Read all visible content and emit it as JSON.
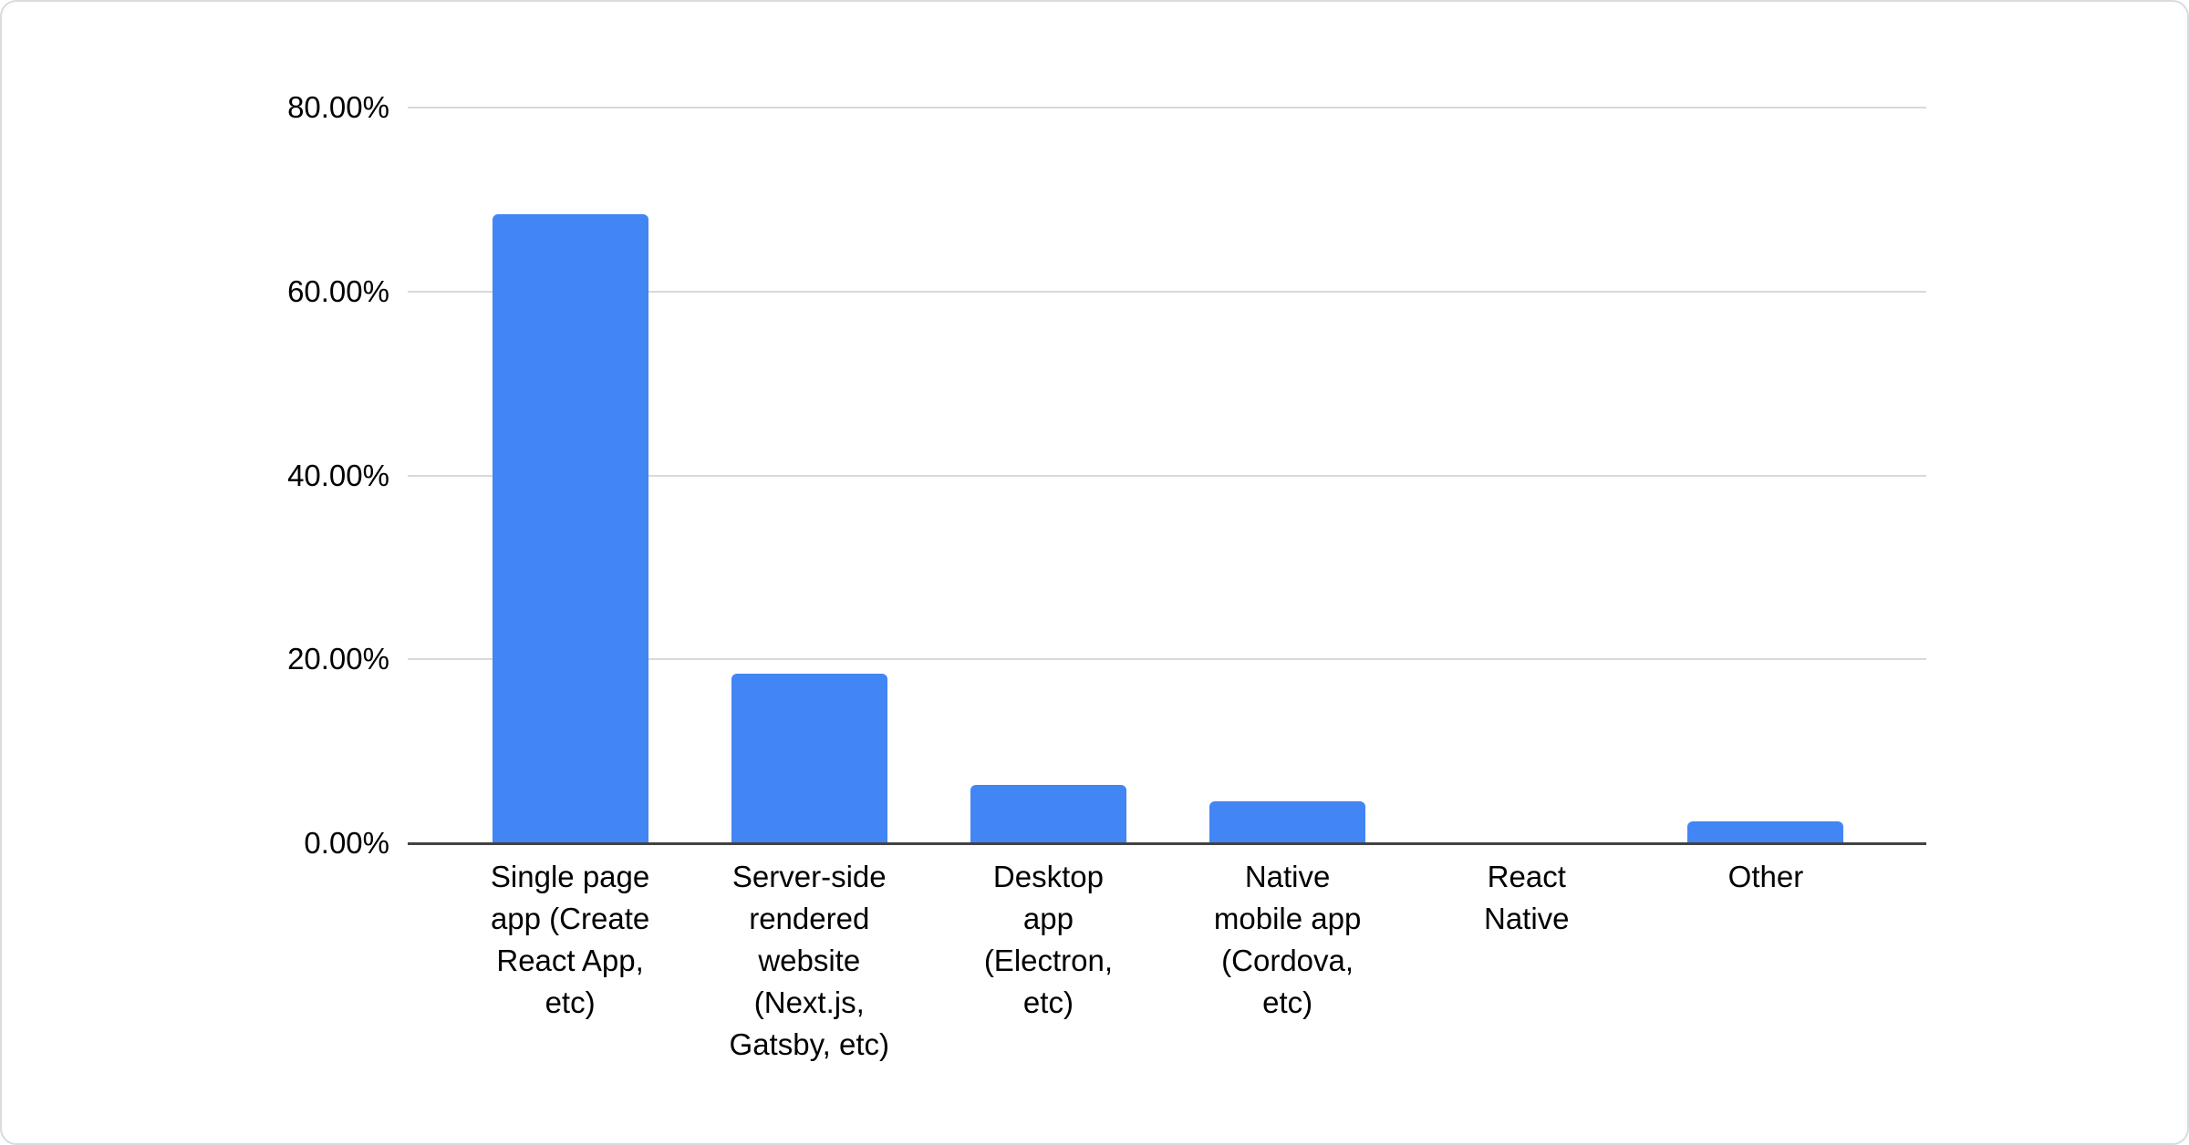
{
  "chart_data": {
    "type": "bar",
    "categories": [
      "Single page app (Create React App, etc)",
      "Server-side rendered website (Next.js, Gatsby, etc)",
      "Desktop app (Electron, etc)",
      "Native mobile app (Cordova, etc)",
      "React Native",
      "Other"
    ],
    "category_display_lines": [
      [
        "Single page",
        "app (Create",
        "React App,",
        "etc)"
      ],
      [
        "Server-side",
        "rendered",
        "website",
        "(Next.js,",
        "Gatsby, etc)"
      ],
      [
        "Desktop",
        "app",
        "(Electron,",
        "etc)"
      ],
      [
        "Native",
        "mobile app",
        "(Cordova,",
        "etc)"
      ],
      [
        "React",
        "Native"
      ],
      [
        "Other"
      ]
    ],
    "values": [
      68.4,
      18.4,
      6.3,
      4.6,
      0,
      2.4
    ],
    "unit": "%",
    "ylim": [
      0,
      80
    ],
    "yticks": [
      "80.00%",
      "60.00%",
      "40.00%",
      "20.00%",
      "0.00%"
    ],
    "ytick_values": [
      80,
      60,
      40,
      20,
      0
    ],
    "grid": true,
    "legend": "none"
  },
  "colors": {
    "bar": "#4285f4",
    "gridline": "#d9d9d9",
    "axis_line": "#424242",
    "text": "#000000",
    "card_border": "#d8dbe0",
    "background": "#ffffff"
  }
}
